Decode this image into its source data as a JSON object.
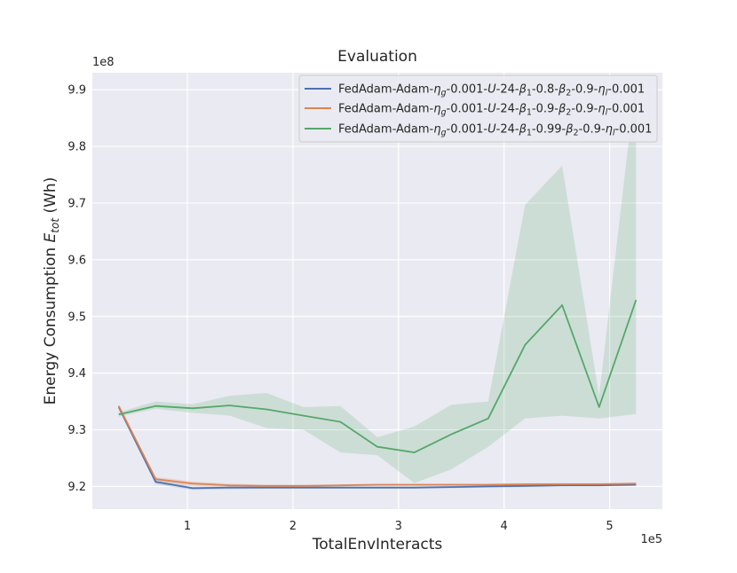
{
  "chart_data": {
    "type": "line",
    "title": "Evaluation",
    "xlabel": "TotalEnvInteracts",
    "ylabel": "Energy Consumption E_tot (Wh)",
    "ylabel_parts": {
      "main": "Energy Consumption ",
      "sym": "E",
      "sub": "tot",
      "unit": " (Wh)"
    },
    "x_multiplier": "1e5",
    "y_multiplier": "1e8",
    "xlim": [
      0.1,
      5.5
    ],
    "ylim": [
      9.16,
      9.93
    ],
    "xticks": [
      1,
      2,
      3,
      4,
      5
    ],
    "yticks": [
      9.2,
      9.3,
      9.4,
      9.5,
      9.6,
      9.7,
      9.8,
      9.9
    ],
    "ytick_labels": [
      "9.2",
      "9.3",
      "9.4",
      "9.5",
      "9.6",
      "9.7",
      "9.8",
      "9.9"
    ],
    "grid": true,
    "legend_position": "upper-right",
    "x": [
      0.35,
      0.7,
      1.05,
      1.4,
      1.75,
      2.1,
      2.45,
      2.8,
      3.15,
      3.5,
      3.85,
      4.2,
      4.55,
      4.9,
      5.25
    ],
    "series": [
      {
        "legend_parts": [
          "FedAdam-Adam-",
          "η",
          "g",
          "-0.001-",
          "U",
          "-24-",
          "β",
          "1",
          "-0.8-",
          "β",
          "2",
          "-0.9-",
          "η",
          "l",
          "-0.001"
        ],
        "color": "#4c72b0",
        "values": [
          9.34,
          9.208,
          9.197,
          9.198,
          9.198,
          9.198,
          9.198,
          9.198,
          9.198,
          9.199,
          9.2,
          9.201,
          9.202,
          9.202,
          9.203
        ],
        "lower": [
          9.338,
          9.204,
          9.194,
          9.195,
          9.196,
          9.196,
          9.196,
          9.196,
          9.196,
          9.197,
          9.198,
          9.199,
          9.2,
          9.2,
          9.201
        ],
        "upper": [
          9.342,
          9.212,
          9.2,
          9.201,
          9.2,
          9.2,
          9.2,
          9.2,
          9.2,
          9.201,
          9.202,
          9.203,
          9.204,
          9.204,
          9.205
        ]
      },
      {
        "legend_parts": [
          "FedAdam-Adam-",
          "η",
          "g",
          "-0.001-",
          "U",
          "-24-",
          "β",
          "1",
          "-0.9-",
          "β",
          "2",
          "-0.9-",
          "η",
          "l",
          "-0.001"
        ],
        "color": "#dd8452",
        "values": [
          9.342,
          9.213,
          9.205,
          9.202,
          9.201,
          9.201,
          9.202,
          9.203,
          9.203,
          9.203,
          9.203,
          9.204,
          9.204,
          9.204,
          9.205
        ],
        "lower": [
          9.34,
          9.209,
          9.201,
          9.199,
          9.199,
          9.199,
          9.2,
          9.201,
          9.201,
          9.201,
          9.201,
          9.202,
          9.202,
          9.202,
          9.203
        ],
        "upper": [
          9.344,
          9.217,
          9.209,
          9.205,
          9.203,
          9.203,
          9.204,
          9.205,
          9.205,
          9.205,
          9.205,
          9.206,
          9.206,
          9.206,
          9.207
        ]
      },
      {
        "legend_parts": [
          "FedAdam-Adam-",
          "η",
          "g",
          "-0.001-",
          "U",
          "-24-",
          "β",
          "1",
          "-0.99-",
          "β",
          "2",
          "-0.9-",
          "η",
          "l",
          "-0.001"
        ],
        "color": "#55a868",
        "values": [
          9.327,
          9.342,
          9.338,
          9.343,
          9.336,
          9.325,
          9.314,
          9.27,
          9.26,
          9.292,
          9.32,
          9.45,
          9.52,
          9.34,
          9.529
        ],
        "lower": [
          9.323,
          9.337,
          9.33,
          9.325,
          9.303,
          9.3,
          9.26,
          9.255,
          9.206,
          9.23,
          9.27,
          9.32,
          9.325,
          9.32,
          9.328
        ],
        "upper": [
          9.331,
          9.35,
          9.345,
          9.36,
          9.365,
          9.34,
          9.342,
          9.287,
          9.306,
          9.344,
          9.35,
          9.697,
          9.766,
          9.36,
          9.92
        ]
      }
    ]
  }
}
